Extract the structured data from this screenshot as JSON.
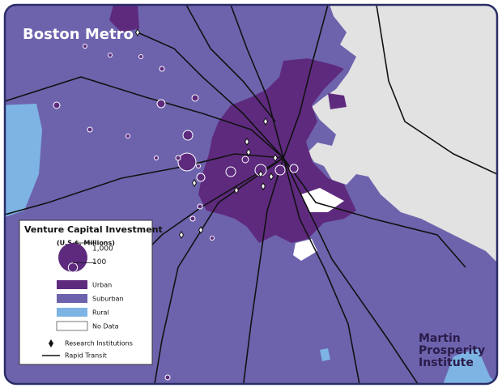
{
  "map": {
    "title": "Boston Metro",
    "legend": {
      "title": "Venture Capital Investment",
      "subtitle": "(U.S.$, Millions)",
      "size_ticks": [
        {
          "value": 1000,
          "label": "1,000"
        },
        100
      ],
      "areas": [
        {
          "label": "Urban",
          "color": "#5e2a7e"
        },
        {
          "label": "Suburban",
          "color": "#6d63ad"
        },
        {
          "label": "Rural",
          "color": "#7db4e4"
        },
        {
          "label": "No Data",
          "color": "#ffffff"
        }
      ],
      "research": "Research Institutions",
      "transit": "Rapid Transit"
    },
    "credit": [
      "Martin",
      "Prosperity",
      "Institute"
    ],
    "investments": [
      373,
      111,
      77,
      49,
      111,
      77,
      151,
      111,
      77,
      49,
      49,
      28,
      28,
      19,
      28,
      19,
      19,
      19,
      19,
      28,
      19,
      28,
      28,
      19
    ]
  }
}
